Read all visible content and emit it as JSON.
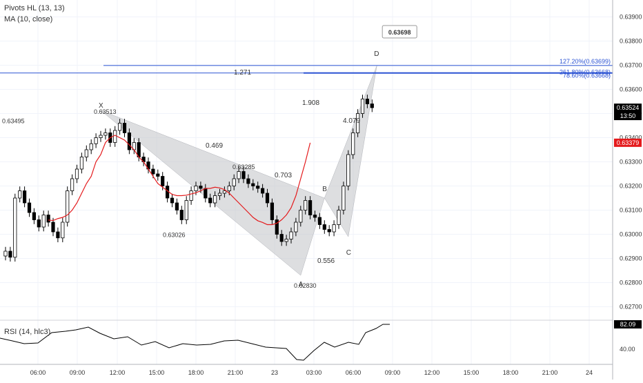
{
  "indicators": {
    "pivots_label": "Pivots HL (13, 13)",
    "ma_label": "MA (10, close)",
    "rsi_label": "RSI (14, hlc3)"
  },
  "colors": {
    "candle": "#000000",
    "ma_line": "#e41a1c",
    "fib_line": "#2a52d3",
    "pattern_fill": "#c7c8cc",
    "grid": "#f0f3fa",
    "axis_text": "#333333",
    "last_price_bg": "#000000",
    "ma_price_bg": "#e41a1c",
    "rsi_line": "#000000"
  },
  "chart_data": [
    {
      "type": "candlestick",
      "name": "price",
      "x_ticks": [
        "06:00",
        "09:00",
        "12:00",
        "15:00",
        "18:00",
        "21:00",
        "23",
        "03:00",
        "06:00",
        "09:00",
        "12:00",
        "15:00",
        "18:00",
        "21:00",
        "24"
      ],
      "y_ticks": [
        "0.63900",
        "0.63800",
        "0.63700",
        "0.63600",
        "0.63500",
        "0.63400",
        "0.63300",
        "0.63200",
        "0.63100",
        "0.63000",
        "0.62900",
        "0.62800",
        "0.62700"
      ],
      "ylim": [
        0.6265,
        0.6397
      ],
      "close_series": [
        0.6293,
        0.62905,
        0.6315,
        0.6318,
        0.6313,
        0.6309,
        0.6306,
        0.6303,
        0.6308,
        0.6305,
        0.6301,
        0.62985,
        0.6305,
        0.6318,
        0.6323,
        0.6327,
        0.6332,
        0.6335,
        0.63375,
        0.634,
        0.6341,
        0.6342,
        0.6338,
        0.6343,
        0.6346,
        0.6342,
        0.6335,
        0.6338,
        0.6332,
        0.633,
        0.6327,
        0.6325,
        0.6324,
        0.632,
        0.6315,
        0.6313,
        0.631,
        0.6306,
        0.6314,
        0.6318,
        0.632,
        0.6319,
        0.6315,
        0.6313,
        0.6316,
        0.6317,
        0.6318,
        0.632,
        0.6323,
        0.6326,
        0.6323,
        0.6321,
        0.632,
        0.6319,
        0.6317,
        0.6313,
        0.6306,
        0.63,
        0.6297,
        0.6298,
        0.6301,
        0.6305,
        0.631,
        0.6314,
        0.6308,
        0.6307,
        0.6304,
        0.6302,
        0.6301,
        0.6304,
        0.631,
        0.632,
        0.6333,
        0.6342,
        0.635,
        0.6356,
        0.6354,
        0.63524
      ],
      "ma_series": [
        null,
        null,
        null,
        null,
        null,
        null,
        null,
        null,
        null,
        0.63059,
        0.63057,
        0.63065,
        0.6307,
        0.6308,
        0.631,
        0.6313,
        0.6317,
        0.6321,
        0.6324,
        0.633,
        0.6333,
        0.6338,
        0.634,
        0.6341,
        0.634,
        0.6339,
        0.6337,
        0.6335,
        0.6332,
        0.633,
        0.6327,
        0.6324,
        0.6321,
        0.63195,
        0.6318,
        0.63165,
        0.6316,
        0.6316,
        0.63162,
        0.63167,
        0.63172,
        0.6318,
        0.6319,
        0.6319,
        0.63195,
        0.63192,
        0.63185,
        0.6317,
        0.6315,
        0.6313,
        0.6311,
        0.6309,
        0.6307,
        0.63056,
        0.63049,
        0.6304,
        0.6304,
        0.63046,
        0.6306,
        0.6308,
        0.6311,
        0.6316,
        0.6323,
        0.633,
        0.63379
      ],
      "pivot_labels": [
        {
          "x_index": 0,
          "price": 0.63495,
          "text": "0.63495"
        },
        {
          "x_index": 23,
          "price": 0.63513,
          "text": "0.63513"
        },
        {
          "x_index": 36,
          "price": 0.63026,
          "text": "0.63026"
        },
        {
          "x_index": 55,
          "price": 0.63285,
          "text": "0.63285"
        },
        {
          "x_index": 68,
          "price": 0.6283,
          "text": "0.62830"
        },
        {
          "x_index": 86,
          "price": 0.63698,
          "text": "0.63698"
        }
      ],
      "harmonic_points": [
        {
          "label": "X",
          "price": 0.63513
        },
        {
          "label": "A",
          "price": 0.6283
        },
        {
          "label": "B",
          "price": 0.6315
        },
        {
          "label": "C",
          "price": 0.6299
        },
        {
          "label": "D",
          "price": 0.63698
        }
      ],
      "ratio_labels": [
        "1.271",
        "0.469",
        "1.908",
        "4.079",
        "0.703",
        "0.556"
      ],
      "fib_levels": [
        {
          "text": "127.20%(0.63699)",
          "price": 0.63699
        },
        {
          "text": "261.80%(0.63668)",
          "price": 0.63668
        },
        {
          "text": "78.60%(0.63668)",
          "price": 0.63668
        }
      ],
      "last_price": {
        "text": "0.63524",
        "countdown": "13:50",
        "price": 0.63524
      },
      "ma_price": {
        "text": "0.63379",
        "price": 0.63379
      }
    },
    {
      "type": "line",
      "name": "RSI",
      "y_ticks": [
        "82.09",
        "40.00"
      ],
      "last_value": "82.09"
    }
  ]
}
